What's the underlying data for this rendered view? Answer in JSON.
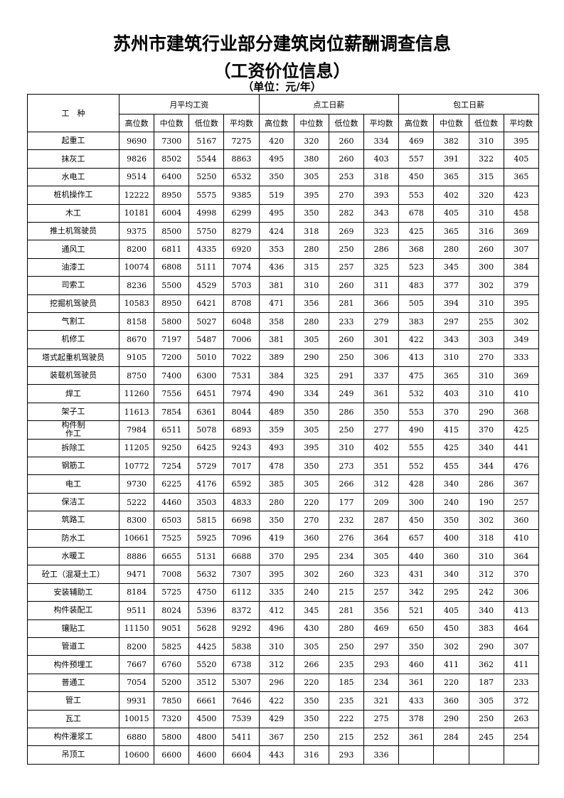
{
  "title": "苏州市建筑行业部分建筑岗位薪酬调查信息",
  "subtitle": "（工资价位信息）",
  "unit": "（单位：元/年）",
  "table": {
    "row_header": "工　种",
    "groups": [
      "月平均工资",
      "点工日薪",
      "包工日薪"
    ],
    "subheaders": [
      "高位数",
      "中位数",
      "低位数",
      "平均数",
      "高位数",
      "中位数",
      "低位数",
      "平均数",
      "高位数",
      "中位数",
      "低位数",
      "平均数"
    ],
    "rows": [
      {
        "name": "起重工",
        "values": [
          "9690",
          "7300",
          "5167",
          "7275",
          "420",
          "320",
          "260",
          "334",
          "469",
          "382",
          "310",
          "395"
        ]
      },
      {
        "name": "抹灰工",
        "values": [
          "9826",
          "8502",
          "5544",
          "8863",
          "495",
          "380",
          "260",
          "403",
          "557",
          "391",
          "322",
          "405"
        ]
      },
      {
        "name": "水电工",
        "values": [
          "9514",
          "6400",
          "5250",
          "6532",
          "350",
          "305",
          "253",
          "318",
          "450",
          "365",
          "315",
          "365"
        ]
      },
      {
        "name": "桩机操作工",
        "values": [
          "12222",
          "8950",
          "5575",
          "9385",
          "519",
          "395",
          "270",
          "393",
          "553",
          "402",
          "320",
          "423"
        ]
      },
      {
        "name": "木工",
        "values": [
          "10181",
          "6004",
          "4998",
          "6299",
          "495",
          "350",
          "282",
          "343",
          "678",
          "405",
          "310",
          "458"
        ]
      },
      {
        "name": "推土机驾驶员",
        "values": [
          "9375",
          "8500",
          "5750",
          "8279",
          "424",
          "318",
          "269",
          "323",
          "425",
          "365",
          "316",
          "369"
        ]
      },
      {
        "name": "通风工",
        "values": [
          "8200",
          "6811",
          "4335",
          "6920",
          "353",
          "280",
          "250",
          "286",
          "368",
          "280",
          "260",
          "307"
        ]
      },
      {
        "name": "油漆工",
        "values": [
          "10074",
          "6808",
          "5111",
          "7074",
          "436",
          "315",
          "257",
          "325",
          "523",
          "345",
          "300",
          "384"
        ]
      },
      {
        "name": "司索工",
        "values": [
          "8236",
          "5500",
          "4529",
          "5703",
          "381",
          "310",
          "260",
          "311",
          "483",
          "377",
          "302",
          "379"
        ]
      },
      {
        "name": "挖掘机驾驶员",
        "values": [
          "10583",
          "8950",
          "6421",
          "8708",
          "471",
          "356",
          "281",
          "366",
          "505",
          "394",
          "310",
          "395"
        ]
      },
      {
        "name": "气割工",
        "values": [
          "8158",
          "5800",
          "5027",
          "6048",
          "358",
          "280",
          "233",
          "279",
          "383",
          "297",
          "255",
          "302"
        ]
      },
      {
        "name": "机修工",
        "values": [
          "8670",
          "7197",
          "5487",
          "7006",
          "381",
          "305",
          "260",
          "301",
          "422",
          "343",
          "303",
          "349"
        ]
      },
      {
        "name": "塔式起重机驾驶员",
        "values": [
          "9105",
          "7200",
          "5010",
          "7022",
          "389",
          "290",
          "250",
          "306",
          "413",
          "310",
          "270",
          "333"
        ]
      },
      {
        "name": "装载机驾驶员",
        "values": [
          "8750",
          "7400",
          "6300",
          "7531",
          "384",
          "325",
          "291",
          "337",
          "475",
          "365",
          "310",
          "369"
        ]
      },
      {
        "name": "焊工",
        "values": [
          "11260",
          "7556",
          "6451",
          "7974",
          "490",
          "334",
          "249",
          "361",
          "532",
          "403",
          "310",
          "410"
        ]
      },
      {
        "name": "架子工",
        "values": [
          "11613",
          "7854",
          "6361",
          "8044",
          "489",
          "350",
          "286",
          "350",
          "553",
          "370",
          "290",
          "368"
        ]
      },
      {
        "name": "构件制\n作工",
        "values": [
          "7984",
          "6511",
          "5078",
          "6893",
          "359",
          "305",
          "250",
          "277",
          "490",
          "415",
          "370",
          "425"
        ]
      },
      {
        "name": "拆除工",
        "values": [
          "11205",
          "9250",
          "6425",
          "9243",
          "493",
          "395",
          "310",
          "402",
          "555",
          "425",
          "340",
          "441"
        ]
      },
      {
        "name": "钢筋工",
        "values": [
          "10772",
          "7254",
          "5729",
          "7017",
          "478",
          "350",
          "273",
          "351",
          "552",
          "455",
          "344",
          "476"
        ]
      },
      {
        "name": "电工",
        "values": [
          "9730",
          "6225",
          "4176",
          "6592",
          "385",
          "305",
          "266",
          "312",
          "428",
          "340",
          "286",
          "367"
        ]
      },
      {
        "name": "保洁工",
        "values": [
          "5222",
          "4460",
          "3503",
          "4833",
          "280",
          "220",
          "177",
          "209",
          "300",
          "240",
          "190",
          "257"
        ]
      },
      {
        "name": "筑路工",
        "values": [
          "8300",
          "6503",
          "5815",
          "6698",
          "350",
          "270",
          "232",
          "287",
          "450",
          "350",
          "302",
          "360"
        ]
      },
      {
        "name": "防水工",
        "values": [
          "10661",
          "7525",
          "5925",
          "7096",
          "419",
          "360",
          "276",
          "364",
          "657",
          "400",
          "318",
          "410"
        ]
      },
      {
        "name": "水暖工",
        "values": [
          "8886",
          "6655",
          "5131",
          "6688",
          "370",
          "295",
          "234",
          "305",
          "440",
          "360",
          "310",
          "364"
        ]
      },
      {
        "name": "砼工（混凝土工）",
        "values": [
          "9471",
          "7008",
          "5632",
          "7307",
          "395",
          "302",
          "260",
          "323",
          "431",
          "340",
          "312",
          "370"
        ]
      },
      {
        "name": "安装辅助工",
        "values": [
          "8184",
          "5725",
          "4750",
          "6112",
          "335",
          "240",
          "215",
          "257",
          "342",
          "295",
          "242",
          "306"
        ]
      },
      {
        "name": "构件装配工",
        "values": [
          "9511",
          "8024",
          "5396",
          "8372",
          "412",
          "345",
          "281",
          "356",
          "521",
          "405",
          "340",
          "413"
        ]
      },
      {
        "name": "镶贴工",
        "values": [
          "11150",
          "9051",
          "5628",
          "9292",
          "496",
          "430",
          "280",
          "469",
          "650",
          "450",
          "383",
          "464"
        ]
      },
      {
        "name": "管道工",
        "values": [
          "8200",
          "5825",
          "4425",
          "5838",
          "310",
          "305",
          "250",
          "297",
          "350",
          "302",
          "290",
          "307"
        ]
      },
      {
        "name": "构件预埋工",
        "values": [
          "7667",
          "6760",
          "5520",
          "6738",
          "312",
          "266",
          "235",
          "293",
          "460",
          "411",
          "362",
          "411"
        ]
      },
      {
        "name": "普通工",
        "values": [
          "7054",
          "5200",
          "3512",
          "5307",
          "296",
          "220",
          "185",
          "234",
          "361",
          "220",
          "187",
          "233"
        ]
      },
      {
        "name": "管工",
        "values": [
          "9931",
          "7850",
          "6661",
          "7646",
          "422",
          "350",
          "235",
          "321",
          "433",
          "360",
          "305",
          "372"
        ]
      },
      {
        "name": "瓦工",
        "values": [
          "10015",
          "7320",
          "4500",
          "7539",
          "429",
          "350",
          "222",
          "275",
          "378",
          "290",
          "250",
          "263"
        ]
      },
      {
        "name": "构件灌浆工",
        "values": [
          "6880",
          "5800",
          "4800",
          "5411",
          "367",
          "250",
          "215",
          "252",
          "361",
          "284",
          "245",
          "254"
        ]
      },
      {
        "name": "吊顶工",
        "values": [
          "10600",
          "6600",
          "4600",
          "6604",
          "443",
          "316",
          "293",
          "336",
          "",
          "",
          "",
          ""
        ]
      }
    ]
  }
}
